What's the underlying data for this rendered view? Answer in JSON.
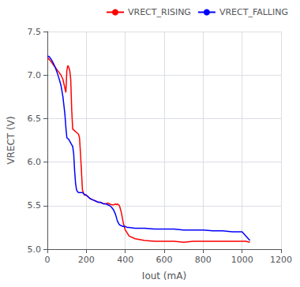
{
  "chart_data": {
    "type": "line",
    "xlabel": "Iout (mA)",
    "ylabel": "VRECT (V)",
    "xlim": [
      0,
      1200
    ],
    "ylim": [
      5.0,
      7.5
    ],
    "xticks": [
      0,
      200,
      400,
      600,
      800,
      1000,
      1200
    ],
    "yticks": [
      {
        "value": 5.0,
        "label": "5.0"
      },
      5.5,
      {
        "value": 6.0,
        "label": "6.0"
      },
      6.5,
      {
        "value": 7.0,
        "label": "7.0"
      },
      7.5
    ],
    "grid": true,
    "legend": "upper right",
    "series": [
      {
        "name": "VRECT_RISING",
        "color": "#ff0000",
        "x": [
          0,
          10,
          20,
          30,
          40,
          50,
          60,
          70,
          80,
          90,
          95,
          100,
          105,
          110,
          115,
          120,
          125,
          130,
          140,
          150,
          160,
          165,
          170,
          175,
          180,
          190,
          200,
          210,
          220,
          230,
          240,
          250,
          260,
          270,
          280,
          290,
          300,
          310,
          320,
          330,
          340,
          350,
          355,
          360,
          370,
          380,
          390,
          400,
          420,
          450,
          500,
          550,
          600,
          650,
          700,
          750,
          800,
          850,
          900,
          950,
          1000,
          1020,
          1040
        ],
        "values": [
          7.2,
          7.18,
          7.15,
          7.12,
          7.09,
          7.06,
          7.03,
          7.0,
          6.95,
          6.85,
          6.8,
          7.05,
          7.11,
          7.09,
          7.05,
          6.95,
          6.6,
          6.38,
          6.36,
          6.34,
          6.32,
          6.28,
          6.1,
          5.9,
          5.68,
          5.62,
          5.62,
          5.6,
          5.58,
          5.57,
          5.56,
          5.55,
          5.54,
          5.54,
          5.53,
          5.52,
          5.52,
          5.53,
          5.52,
          5.51,
          5.51,
          5.52,
          5.51,
          5.52,
          5.5,
          5.42,
          5.3,
          5.22,
          5.15,
          5.12,
          5.1,
          5.09,
          5.09,
          5.09,
          5.08,
          5.09,
          5.09,
          5.09,
          5.09,
          5.09,
          5.09,
          5.09,
          5.08
        ]
      },
      {
        "name": "VRECT_FALLING",
        "color": "#0000ff",
        "x": [
          0,
          10,
          20,
          30,
          40,
          50,
          60,
          70,
          80,
          90,
          95,
          100,
          105,
          110,
          115,
          120,
          125,
          130,
          135,
          140,
          145,
          150,
          155,
          160,
          165,
          170,
          175,
          180,
          190,
          200,
          210,
          220,
          230,
          240,
          250,
          260,
          270,
          280,
          290,
          300,
          310,
          320,
          330,
          340,
          350,
          360,
          370,
          380,
          390,
          395,
          400,
          410,
          420,
          450,
          500,
          550,
          600,
          650,
          700,
          750,
          800,
          850,
          900,
          950,
          1000,
          1020,
          1040
        ],
        "values": [
          7.22,
          7.21,
          7.18,
          7.14,
          7.09,
          7.03,
          6.96,
          6.88,
          6.75,
          6.55,
          6.4,
          6.28,
          6.27,
          6.26,
          6.24,
          6.22,
          6.2,
          6.18,
          6.1,
          5.9,
          5.75,
          5.68,
          5.66,
          5.65,
          5.65,
          5.65,
          5.65,
          5.65,
          5.63,
          5.62,
          5.6,
          5.58,
          5.57,
          5.56,
          5.55,
          5.54,
          5.54,
          5.53,
          5.52,
          5.52,
          5.51,
          5.5,
          5.48,
          5.45,
          5.4,
          5.32,
          5.28,
          5.27,
          5.26,
          5.26,
          5.26,
          5.25,
          5.25,
          5.24,
          5.24,
          5.23,
          5.23,
          5.23,
          5.22,
          5.22,
          5.22,
          5.21,
          5.21,
          5.2,
          5.2,
          5.15,
          5.1
        ]
      }
    ]
  }
}
